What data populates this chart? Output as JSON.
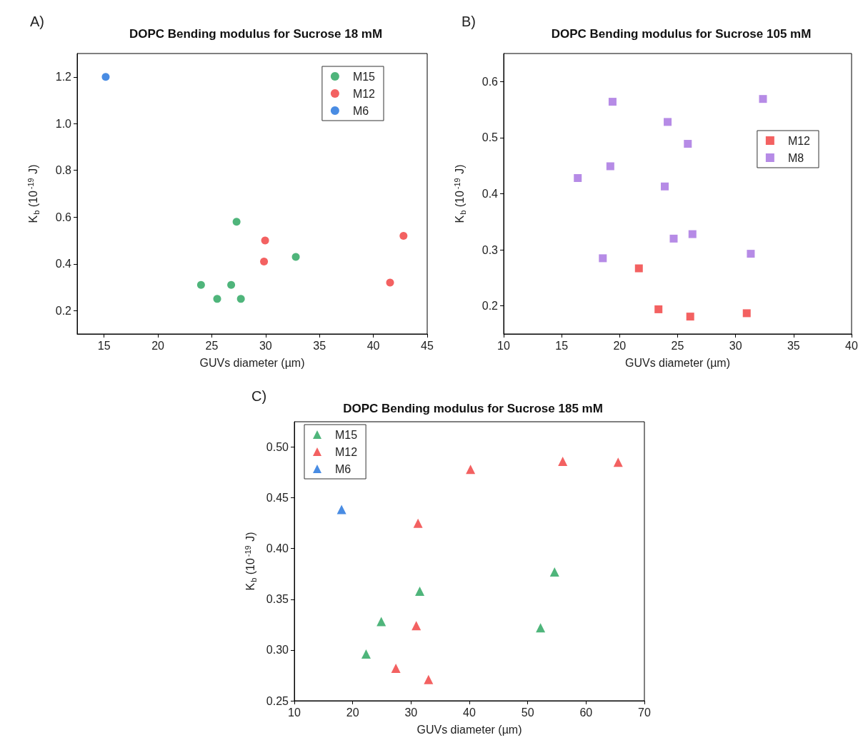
{
  "chart_data": [
    {
      "type": "scatter",
      "title": "DOPC Bending modulus for Sucrose 18 mM",
      "xlabel": "GUVs diameter (µm)",
      "ylabel": "K$_{b}$ (10$^{-19}$ J)",
      "annotations": [
        "A)"
      ],
      "marker": "circle",
      "legend": "top right",
      "grid": false,
      "xlim": [
        12.5,
        45
      ],
      "xticks": [
        15,
        20,
        25,
        30,
        35,
        40,
        45
      ],
      "ylim": [
        0.1,
        1.3
      ],
      "yticks": [
        0.2,
        0.4,
        0.6,
        0.8,
        {
          "value": 1,
          "label": "1.0"
        },
        1.2
      ],
      "series": [
        {
          "name": "M15",
          "color": "#23a35a",
          "x": [
            24.0,
            25.5,
            26.8,
            27.7,
            27.3,
            32.8
          ],
          "values": [
            0.31,
            0.25,
            0.31,
            0.25,
            0.58,
            0.43
          ]
        },
        {
          "name": "M12",
          "color": "#f03a3a",
          "x": [
            29.95,
            29.85,
            41.55,
            42.8
          ],
          "values": [
            0.5,
            0.41,
            0.32,
            0.52
          ]
        },
        {
          "name": "M6",
          "color": "#1c6fdc",
          "x": [
            15.15
          ],
          "values": [
            1.2
          ]
        }
      ]
    },
    {
      "type": "scatter",
      "title": "DOPC Bending modulus for Sucrose 105 mM",
      "xlabel": "GUVs diameter (µm)",
      "ylabel": "K$_{b}$ (10$^{-19}$ J)",
      "annotations": [
        "B)"
      ],
      "marker": "square",
      "legend": "right",
      "grid": false,
      "xlim": [
        10,
        40
      ],
      "xticks": [
        10,
        15,
        20,
        25,
        30,
        35,
        40
      ],
      "ylim": [
        0.15,
        0.65
      ],
      "yticks": [
        0.2,
        0.3,
        0.4,
        0.5,
        0.6
      ],
      "series": [
        {
          "name": "M12",
          "color": "#f03a3a",
          "x": [
            21.66,
            23.35,
            26.09,
            30.96
          ],
          "values": [
            0.267,
            0.194,
            0.181,
            0.187
          ]
        },
        {
          "name": "M8",
          "color": "#a46ee0",
          "x": [
            19.39,
            32.36,
            24.14,
            25.88,
            19.2,
            16.39,
            23.89,
            24.66,
            26.28,
            18.55,
            31.31
          ],
          "values": [
            0.564,
            0.569,
            0.528,
            0.489,
            0.449,
            0.428,
            0.413,
            0.32,
            0.328,
            0.285,
            0.293
          ]
        }
      ]
    },
    {
      "type": "scatter",
      "title": "DOPC Bending modulus for Sucrose 185 mM",
      "xlabel": "GUVs diameter (µm)",
      "ylabel": "K$_{b}$ (10$^{-19}$ J)",
      "annotations": [
        "C)"
      ],
      "marker": "triangle",
      "legend": "top left",
      "grid": false,
      "xlim": [
        10,
        70
      ],
      "xticks": [
        10,
        20,
        30,
        40,
        50,
        60,
        70
      ],
      "ylim": [
        0.25,
        0.525
      ],
      "yticks": [
        {
          "value": 0.25,
          "label": "0.25"
        },
        {
          "value": 0.3,
          "label": "0.30"
        },
        {
          "value": 0.35,
          "label": "0.35"
        },
        {
          "value": 0.4,
          "label": "0.40"
        },
        {
          "value": 0.45,
          "label": "0.45"
        },
        {
          "value": 0.5,
          "label": "0.50"
        }
      ],
      "series": [
        {
          "name": "M15",
          "color": "#23a35a",
          "x": [
            22.3,
            24.9,
            31.5,
            52.2,
            54.6
          ],
          "values": [
            0.296,
            0.328,
            0.358,
            0.322,
            0.377
          ]
        },
        {
          "name": "M12",
          "color": "#f03a3a",
          "x": [
            40.2,
            56.0,
            65.5,
            31.2,
            30.9,
            27.4,
            33.0
          ],
          "values": [
            0.478,
            0.486,
            0.485,
            0.425,
            0.324,
            0.282,
            0.271
          ]
        },
        {
          "name": "M6",
          "color": "#1c6fdc",
          "x": [
            18.1
          ],
          "values": [
            0.4385
          ]
        }
      ]
    }
  ]
}
